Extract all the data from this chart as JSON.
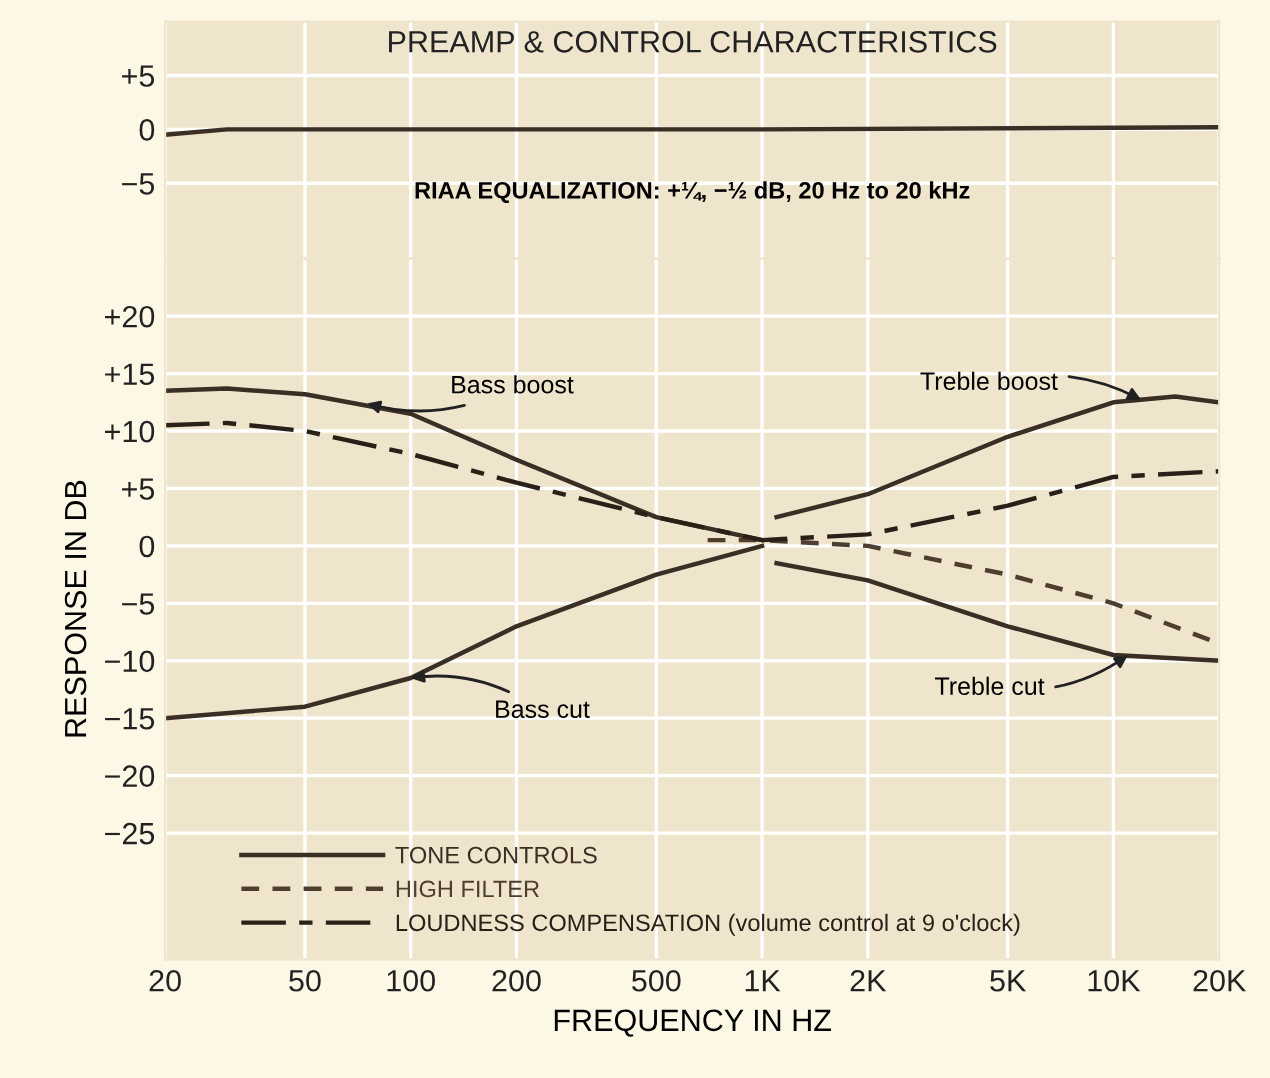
{
  "chart_data": [
    {
      "type": "line",
      "title": "PREAMP & CONTROL CHARACTERISTICS",
      "annotations": [
        "RIAA EQUALIZATION: +¼, −½ dB, 20 Hz to 20 kHz"
      ],
      "xlim": [
        20,
        20000
      ],
      "ylim": [
        -12,
        10
      ],
      "yticks": [
        {
          "value": 5,
          "label": "+5"
        },
        0,
        {
          "value": -5,
          "label": "−5"
        }
      ],
      "xticks": [
        {
          "value": 20,
          "label": null
        },
        {
          "value": 50,
          "label": null
        },
        {
          "value": 100,
          "label": null
        },
        {
          "value": 200,
          "label": null
        },
        {
          "value": 500,
          "label": null
        },
        {
          "value": 1000,
          "label": null
        },
        {
          "value": 2000,
          "label": null
        },
        {
          "value": 5000,
          "label": null
        },
        {
          "value": 10000,
          "label": null
        },
        {
          "value": 20000,
          "label": null
        }
      ],
      "log": "x",
      "grid": true,
      "tick_labels": "y",
      "series": [
        {
          "color": "#3a2e25",
          "line_style": "solid",
          "x": [
            20,
            30,
            100,
            1000,
            20000
          ],
          "values": [
            -0.5,
            0,
            0,
            0,
            0.2
          ]
        }
      ]
    },
    {
      "type": "line",
      "xlabel": "FREQUENCY IN HZ",
      "ylabel": "RESPONSE IN DB",
      "xlim": [
        20,
        20000
      ],
      "ylim": [
        -36,
        25
      ],
      "xticks": [
        20,
        50,
        100,
        200,
        500,
        {
          "value": 1000,
          "label": "1K"
        },
        {
          "value": 2000,
          "label": "2K"
        },
        {
          "value": 5000,
          "label": "5K"
        },
        {
          "value": 10000,
          "label": "10K"
        },
        {
          "value": 20000,
          "label": "20K"
        }
      ],
      "yticks": [
        {
          "value": 20,
          "label": "+20"
        },
        {
          "value": 15,
          "label": "+15"
        },
        {
          "value": 10,
          "label": "+10"
        },
        {
          "value": 5,
          "label": "+5"
        },
        0,
        {
          "value": -5,
          "label": "−5"
        },
        {
          "value": -10,
          "label": "−10"
        },
        {
          "value": -15,
          "label": "−15"
        },
        {
          "value": -20,
          "label": "−20"
        },
        {
          "value": -25,
          "label": "−25"
        }
      ],
      "log": "x",
      "grid": true,
      "legend": "bottom left",
      "annotations": [
        {
          "text": "Bass boost",
          "x": 75,
          "y": 12.4
        },
        {
          "text": "Bass cut",
          "x": 100,
          "y": -11.5
        },
        {
          "text": "Treble boost",
          "x": 12000,
          "y": 12.7
        },
        {
          "text": "Treble cut",
          "x": 11000,
          "y": -9.5
        }
      ],
      "series": [
        {
          "name": "TONE CONTROLS",
          "color": "#3a2e25",
          "line_style": "solid",
          "x": [
            20,
            30,
            50,
            100,
            200,
            500,
            1000
          ],
          "values": [
            13.5,
            13.7,
            13.2,
            11.5,
            7.5,
            2.5,
            0.5
          ]
        },
        {
          "color": "#3a2e25",
          "line_style": "solid",
          "x": [
            20,
            50,
            100,
            200,
            500,
            1000
          ],
          "values": [
            -15,
            -14,
            -11.5,
            -7,
            -2.5,
            0
          ]
        },
        {
          "color": "#3a2e25",
          "line_style": "solid",
          "x": [
            1100,
            2000,
            5000,
            10000,
            15000,
            20000
          ],
          "values": [
            2.5,
            4.5,
            9.5,
            12.5,
            13,
            12.5
          ]
        },
        {
          "color": "#3a2e25",
          "line_style": "solid",
          "x": [
            1100,
            2000,
            5000,
            10000,
            20000
          ],
          "values": [
            -1.5,
            -3,
            -7,
            -9.5,
            -10
          ]
        },
        {
          "name": "HIGH FILTER",
          "color": "#4e3e30",
          "line_style": "dashed",
          "x": [
            700,
            1000,
            2000,
            5000,
            10000,
            20000
          ],
          "values": [
            0.5,
            0.5,
            0,
            -2.5,
            -5,
            -8.5
          ]
        },
        {
          "name": "LOUDNESS COMPENSATION (volume control at 9 o'clock)",
          "color": "#2a2018",
          "line_style": "dashdot",
          "x": [
            20,
            30,
            50,
            100,
            200,
            500,
            1000,
            2000,
            5000,
            10000,
            20000
          ],
          "values": [
            10.5,
            10.7,
            10,
            8,
            5.5,
            2.5,
            0.5,
            1,
            3.5,
            6,
            6.5
          ]
        }
      ]
    }
  ]
}
